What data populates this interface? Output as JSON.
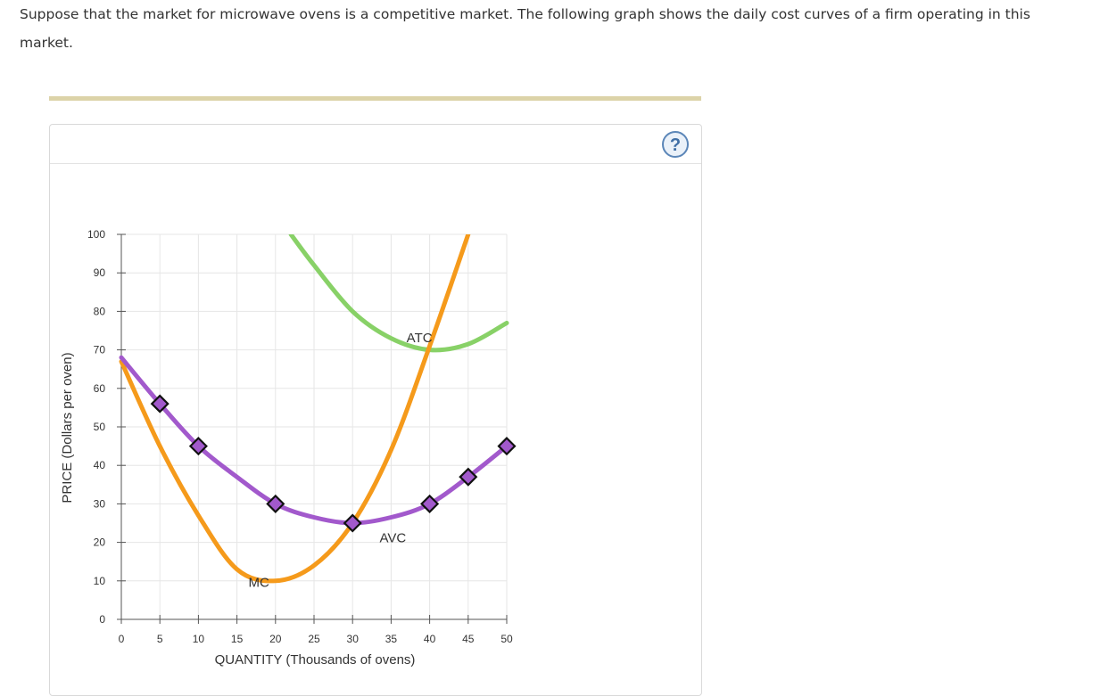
{
  "question": {
    "text": "Suppose that the market for microwave ovens is a competitive market. The following graph shows the daily cost curves of a firm operating in this market."
  },
  "help": {
    "icon": "question-mark-icon",
    "glyph": "?"
  },
  "colors": {
    "atc": "#88d167",
    "mc": "#f59a1b",
    "avc": "#a259cc",
    "marker_fill": "#a259cc",
    "grid": "#e6e6e6",
    "rule_bar": "#dcd3a8",
    "help_ring": "#5b86b8"
  },
  "chart_data": {
    "type": "line",
    "xlabel": "QUANTITY (Thousands of ovens)",
    "ylabel": "PRICE (Dollars per oven)",
    "xlim": [
      0,
      50
    ],
    "ylim": [
      0,
      100
    ],
    "xticks": [
      "0",
      "5",
      "10",
      "15",
      "20",
      "25",
      "30",
      "35",
      "40",
      "45",
      "50"
    ],
    "yticks": [
      "0",
      "10",
      "20",
      "30",
      "40",
      "50",
      "60",
      "70",
      "80",
      "90",
      "100"
    ],
    "grid": true,
    "series": [
      {
        "name": "ATC",
        "key": "atc",
        "label_at": [
          37,
          72
        ],
        "points": [
          [
            22,
            100
          ],
          [
            25,
            92
          ],
          [
            30,
            80
          ],
          [
            35,
            73
          ],
          [
            40,
            70
          ],
          [
            45,
            71.5
          ],
          [
            50,
            77
          ]
        ]
      },
      {
        "name": "MC",
        "key": "mc",
        "label_at": [
          16.5,
          8.5
        ],
        "points": [
          [
            0,
            67
          ],
          [
            5,
            45
          ],
          [
            10,
            27
          ],
          [
            15,
            13
          ],
          [
            20,
            10
          ],
          [
            25,
            14
          ],
          [
            30,
            25
          ],
          [
            35,
            44
          ],
          [
            40,
            71
          ],
          [
            45,
            100
          ]
        ]
      },
      {
        "name": "AVC",
        "key": "avc",
        "label_at": [
          33.5,
          20
        ],
        "points": [
          [
            0,
            68
          ],
          [
            5,
            56
          ],
          [
            10,
            45
          ],
          [
            15,
            37
          ],
          [
            20,
            30
          ],
          [
            25,
            26.5
          ],
          [
            30,
            25
          ],
          [
            35,
            26.5
          ],
          [
            40,
            30
          ],
          [
            45,
            37
          ],
          [
            50,
            45
          ]
        ],
        "markers": [
          [
            5,
            56
          ],
          [
            10,
            45
          ],
          [
            20,
            30
          ],
          [
            30,
            25
          ],
          [
            40,
            30
          ],
          [
            45,
            37
          ],
          [
            50,
            45
          ]
        ]
      }
    ]
  }
}
